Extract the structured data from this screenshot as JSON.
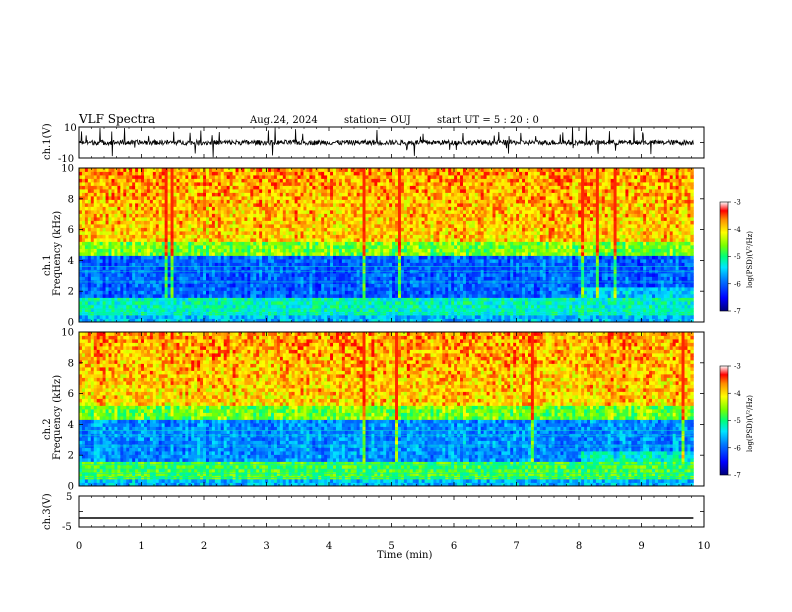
{
  "header": {
    "title": "VLF Spectra",
    "date": "Aug.24, 2024",
    "station": "station= OUJ",
    "start": "start  UT  =   5  : 20 : 0"
  },
  "chart_data": [
    {
      "type": "line",
      "panel": "ch1-waveform",
      "ylabel": "ch.1(V)",
      "ylim": [
        -10,
        10
      ],
      "ytick_labels": [
        "10",
        "-10"
      ],
      "xlim": [
        0,
        10
      ],
      "x_extent": [
        0,
        9.83
      ],
      "series": [
        {
          "mean": 0,
          "amplitude_range": [
            -2,
            2
          ],
          "spikes": true
        }
      ]
    },
    {
      "type": "heatmap",
      "panel": "ch1-spectrogram",
      "ylabel": "ch.1\nFrequency (kHz)",
      "xlim": [
        0,
        10
      ],
      "x_extent": [
        0,
        9.83
      ],
      "ylim": [
        0,
        10
      ],
      "ytick_labels": [
        "0",
        "2",
        "4",
        "6",
        "8",
        "10"
      ],
      "colorbar": {
        "label": "log(PSD)(V²/Hz)",
        "range": [
          -7,
          -3
        ],
        "tick_labels": [
          "-3",
          "-4",
          "-5",
          "-6",
          "-7"
        ]
      },
      "levels": {
        "low_band_kHz": [
          0,
          1.5
        ],
        "quiet_band_kHz": [
          1.5,
          5.0
        ],
        "upper_kHz": [
          5.0,
          10
        ]
      }
    },
    {
      "type": "heatmap",
      "panel": "ch2-spectrogram",
      "ylabel": "ch.2\nFrequency (kHz)",
      "xlim": [
        0,
        10
      ],
      "x_extent": [
        0,
        9.83
      ],
      "ylim": [
        0,
        10
      ],
      "ytick_labels": [
        "0",
        "2",
        "4",
        "6",
        "8",
        "10"
      ],
      "colorbar": {
        "label": "log(PSD)(V²/Hz)",
        "range": [
          -7,
          -3
        ],
        "tick_labels": [
          "-3",
          "-4",
          "-5",
          "-6",
          "-7"
        ]
      },
      "levels": {
        "low_band_kHz": [
          0,
          1.5
        ],
        "quiet_band_kHz": [
          1.5,
          5.0
        ],
        "upper_kHz": [
          5.0,
          10
        ]
      }
    },
    {
      "type": "line",
      "panel": "ch3-waveform",
      "ylabel": "ch.3(V)",
      "ylim": [
        -5,
        5
      ],
      "ytick_labels": [
        "5",
        "-5"
      ],
      "xlim": [
        0,
        10
      ],
      "x_extent": [
        0,
        9.83
      ],
      "series": [
        {
          "constant": -2.1
        }
      ]
    }
  ],
  "xaxis": {
    "label": "Time  (min)",
    "ticks": [
      0,
      1,
      2,
      3,
      4,
      5,
      6,
      7,
      8,
      9,
      10
    ],
    "tick_labels": [
      "0",
      "1",
      "2",
      "3",
      "4",
      "5",
      "6",
      "7",
      "8",
      "9",
      "10"
    ]
  },
  "colors": {
    "scale": [
      "#00007a",
      "#0000ff",
      "#0064ff",
      "#00d2ff",
      "#00ff8c",
      "#64ff00",
      "#ffff00",
      "#ffa000",
      "#ff2800",
      "#ff0000"
    ],
    "trace": "#000000",
    "frame": "#000000"
  }
}
